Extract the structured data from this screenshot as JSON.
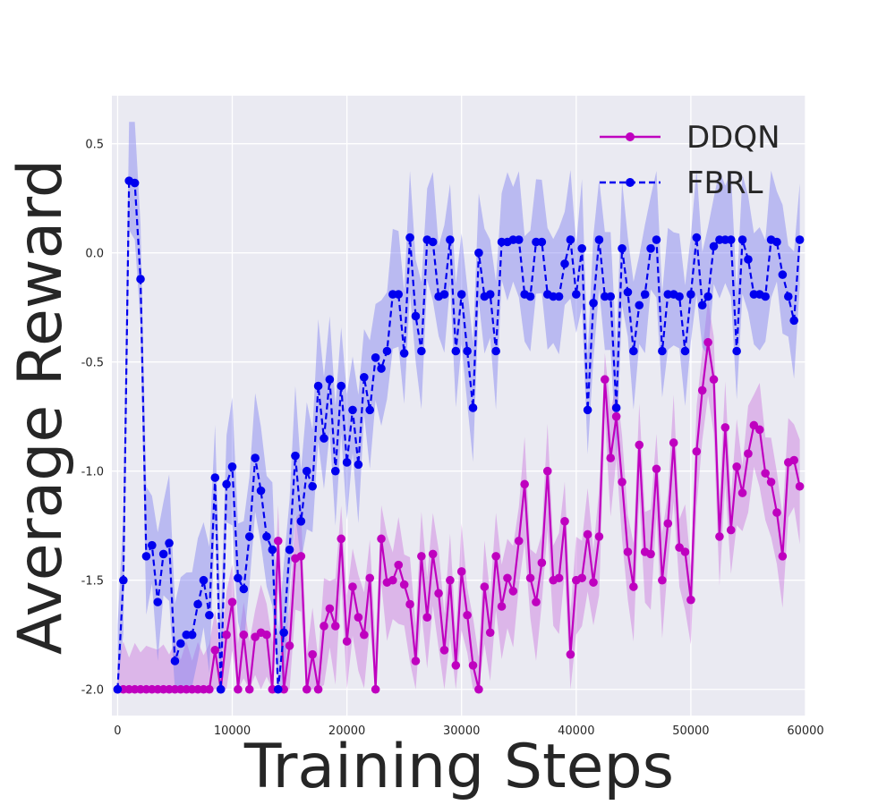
{
  "chart_data": {
    "type": "line",
    "xlabel": "Training Steps",
    "ylabel": "Average Reward",
    "xlim": [
      -500,
      60000
    ],
    "ylim": [
      -2.12,
      0.72
    ],
    "xticks": [
      0,
      10000,
      20000,
      30000,
      40000,
      50000,
      60000
    ],
    "yticks": [
      0.5,
      0.0,
      -0.5,
      -1.0,
      -1.5,
      -2.0
    ],
    "xtick_labels": [
      "0",
      "10000",
      "20000",
      "30000",
      "40000",
      "50000",
      "60000"
    ],
    "ytick_labels": [
      "0.5",
      "0.0",
      "-0.5",
      "-1.0",
      "-1.5",
      "-2.0"
    ],
    "grid": true,
    "legend_position": "top-right",
    "background_color": "#eaeaf2",
    "x_step": 500,
    "series": [
      {
        "name": "DDQN",
        "color": "#bf00bf",
        "band_color": "#cc77dd",
        "linestyle": "solid",
        "marker": "circle",
        "values": [
          -2.0,
          -2.0,
          -2.0,
          -2.0,
          -2.0,
          -2.0,
          -2.0,
          -2.0,
          -2.0,
          -2.0,
          -2.0,
          -2.0,
          -2.0,
          -2.0,
          -2.0,
          -2.0,
          -2.0,
          -1.82,
          -2.0,
          -1.75,
          -1.6,
          -2.0,
          -1.75,
          -2.0,
          -1.76,
          -1.74,
          -1.75,
          -2.0,
          -1.32,
          -2.0,
          -1.8,
          -1.4,
          -1.39,
          -2.0,
          -1.84,
          -2.0,
          -1.71,
          -1.63,
          -1.71,
          -1.31,
          -1.78,
          -1.53,
          -1.67,
          -1.75,
          -1.49,
          -2.0,
          -1.31,
          -1.51,
          -1.5,
          -1.43,
          -1.52,
          -1.61,
          -1.87,
          -1.39,
          -1.67,
          -1.38,
          -1.56,
          -1.82,
          -1.5,
          -1.89,
          -1.46,
          -1.66,
          -1.89,
          -2.0,
          -1.53,
          -1.74,
          -1.39,
          -1.62,
          -1.49,
          -1.55,
          -1.32,
          -1.06,
          -1.49,
          -1.6,
          -1.42,
          -1.0,
          -1.5,
          -1.49,
          -1.23,
          -1.84,
          -1.5,
          -1.49,
          -1.29,
          -1.51,
          -1.3,
          -0.58,
          -0.94,
          -0.75,
          -1.05,
          -1.37,
          -1.53,
          -0.88,
          -1.37,
          -1.38,
          -0.99,
          -1.5,
          -1.24,
          -0.87,
          -1.35,
          -1.37,
          -1.59,
          -0.91,
          -0.63,
          -0.41,
          -0.58,
          -1.3,
          -0.8,
          -1.27,
          -0.98,
          -1.1,
          -0.92,
          -0.79,
          -0.81,
          -1.01,
          -1.05,
          -1.19,
          -1.39,
          -0.96,
          -0.95,
          -1.07
        ]
      },
      {
        "name": "FBRL",
        "color": "#0000ee",
        "band_color": "#8080f0",
        "linestyle": "dashed",
        "marker": "circle",
        "values": [
          -2.0,
          -1.5,
          0.33,
          0.32,
          -0.12,
          -1.39,
          -1.34,
          -1.6,
          -1.38,
          -1.33,
          -1.87,
          -1.79,
          -1.75,
          -1.75,
          -1.61,
          -1.5,
          -1.66,
          -1.03,
          -2.0,
          -1.06,
          -0.98,
          -1.49,
          -1.54,
          -1.3,
          -0.94,
          -1.09,
          -1.3,
          -1.36,
          -2.0,
          -1.74,
          -1.36,
          -0.93,
          -1.23,
          -1.0,
          -1.07,
          -0.61,
          -0.85,
          -0.58,
          -1.0,
          -0.61,
          -0.96,
          -0.72,
          -0.97,
          -0.57,
          -0.72,
          -0.48,
          -0.53,
          -0.45,
          -0.19,
          -0.19,
          -0.46,
          0.07,
          -0.29,
          -0.45,
          0.06,
          0.05,
          -0.2,
          -0.19,
          0.06,
          -0.45,
          -0.19,
          -0.45,
          -0.71,
          0.0,
          -0.2,
          -0.19,
          -0.45,
          0.05,
          0.05,
          0.06,
          0.06,
          -0.19,
          -0.2,
          0.05,
          0.05,
          -0.19,
          -0.2,
          -0.2,
          -0.05,
          0.06,
          -0.19,
          0.02,
          -0.72,
          -0.23,
          0.06,
          -0.2,
          -0.2,
          -0.71,
          0.02,
          -0.18,
          -0.45,
          -0.24,
          -0.19,
          0.02,
          0.06,
          -0.45,
          -0.19,
          -0.19,
          -0.2,
          -0.45,
          -0.19,
          0.07,
          -0.24,
          -0.2,
          0.03,
          0.06,
          0.06,
          0.06,
          -0.45,
          0.06,
          -0.03,
          -0.19,
          -0.19,
          -0.2,
          0.06,
          0.05,
          -0.1,
          -0.2,
          -0.31,
          0.06
        ]
      }
    ]
  }
}
